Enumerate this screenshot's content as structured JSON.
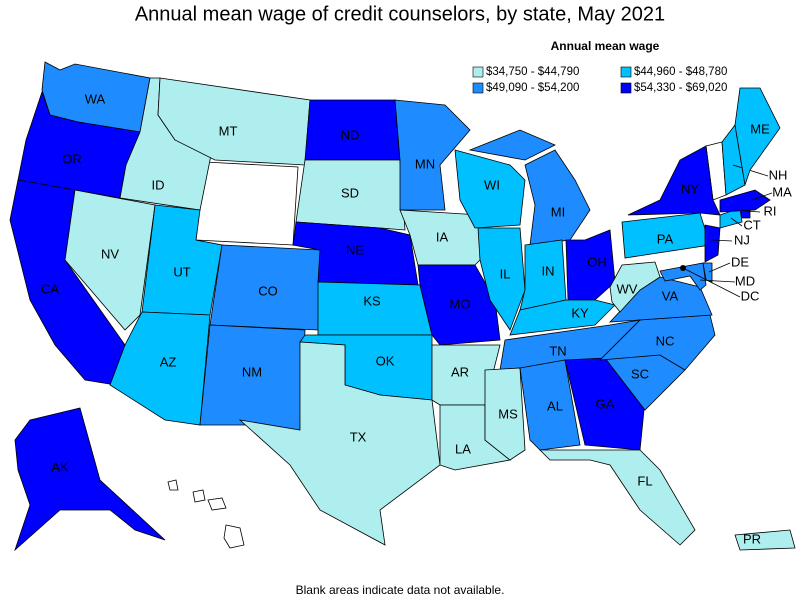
{
  "title": "Annual mean wage of credit counselors, by state, May 2021",
  "legend": {
    "title": "Annual mean wage",
    "items": [
      {
        "label": "$34,750 - $44,790",
        "color": "#aeeeee"
      },
      {
        "label": "$49,090 - $54,200",
        "color": "#1e8cff"
      },
      {
        "label": "$44,960 - $48,780",
        "color": "#00c0ff"
      },
      {
        "label": "$54,330 - $69,020",
        "color": "#0000ff"
      }
    ]
  },
  "states": [
    {
      "label": "WA",
      "color": "#1e8cff"
    },
    {
      "label": "OR",
      "color": "#0000ff"
    },
    {
      "label": "CA",
      "color": "#0000ff"
    },
    {
      "label": "NV",
      "color": "#aeeeee"
    },
    {
      "label": "ID",
      "color": "#aeeeee"
    },
    {
      "label": "MT",
      "color": "#aeeeee"
    },
    {
      "label": "UT",
      "color": "#00c0ff"
    },
    {
      "label": "AZ",
      "color": "#00c0ff"
    },
    {
      "label": "CO",
      "color": "#1e8cff"
    },
    {
      "label": "NM",
      "color": "#1e8cff"
    },
    {
      "label": "ND",
      "color": "#0000ff"
    },
    {
      "label": "SD",
      "color": "#aeeeee"
    },
    {
      "label": "NE",
      "color": "#0000ff"
    },
    {
      "label": "KS",
      "color": "#00c0ff"
    },
    {
      "label": "OK",
      "color": "#00c0ff"
    },
    {
      "label": "TX",
      "color": "#aeeeee"
    },
    {
      "label": "MN",
      "color": "#1e8cff"
    },
    {
      "label": "IA",
      "color": "#aeeeee"
    },
    {
      "label": "MO",
      "color": "#0000ff"
    },
    {
      "label": "AR",
      "color": "#aeeeee"
    },
    {
      "label": "LA",
      "color": "#aeeeee"
    },
    {
      "label": "WI",
      "color": "#00c0ff"
    },
    {
      "label": "IL",
      "color": "#00c0ff"
    },
    {
      "label": "MI",
      "color": "#1e8cff"
    },
    {
      "label": "IN",
      "color": "#00c0ff"
    },
    {
      "label": "OH",
      "color": "#0000ff"
    },
    {
      "label": "KY",
      "color": "#00c0ff"
    },
    {
      "label": "TN",
      "color": "#1e8cff"
    },
    {
      "label": "MS",
      "color": "#aeeeee"
    },
    {
      "label": "AL",
      "color": "#1e8cff"
    },
    {
      "label": "GA",
      "color": "#0000ff"
    },
    {
      "label": "FL",
      "color": "#aeeeee"
    },
    {
      "label": "SC",
      "color": "#1e8cff"
    },
    {
      "label": "NC",
      "color": "#1e8cff"
    },
    {
      "label": "VA",
      "color": "#1e8cff"
    },
    {
      "label": "WV",
      "color": "#aeeeee"
    },
    {
      "label": "PA",
      "color": "#00c0ff"
    },
    {
      "label": "NY",
      "color": "#0000ff"
    },
    {
      "label": "NJ",
      "color": "#0000ff"
    },
    {
      "label": "DE",
      "color": "#1e8cff"
    },
    {
      "label": "MD",
      "color": "#1e8cff"
    },
    {
      "label": "CT",
      "color": "#00c0ff"
    },
    {
      "label": "RI",
      "color": "#0000ff"
    },
    {
      "label": "MA",
      "color": "#0000ff"
    },
    {
      "label": "NH",
      "color": "#00c0ff"
    },
    {
      "label": "ME",
      "color": "#00c0ff"
    },
    {
      "label": "AK",
      "color": "#0000ff"
    },
    {
      "label": "PR",
      "color": "#aeeeee"
    },
    {
      "label": "DC"
    }
  ],
  "note": "Blank areas indicate data not available."
}
